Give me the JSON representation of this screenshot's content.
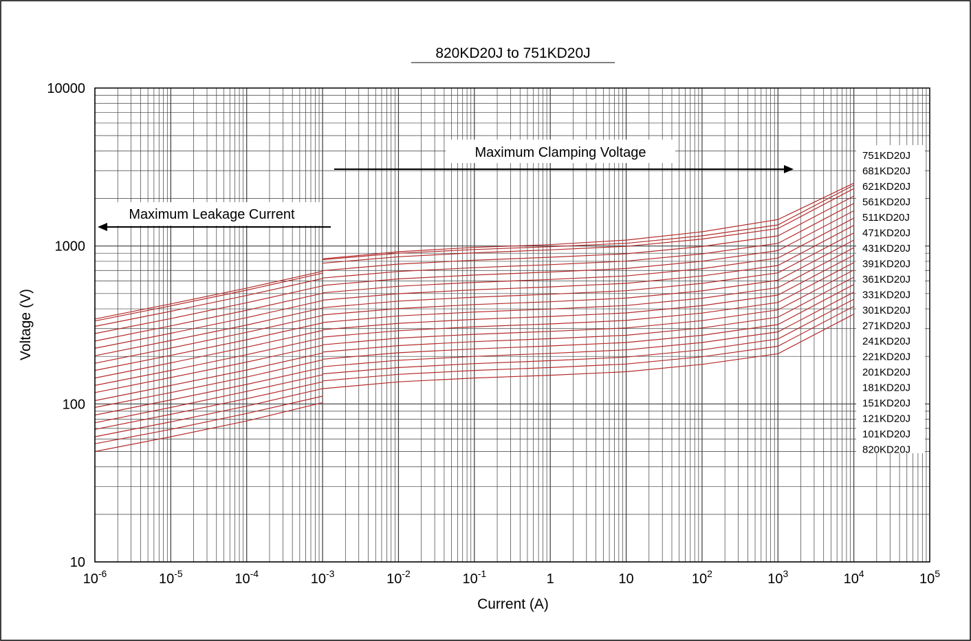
{
  "chart_data": {
    "type": "line",
    "title": "820KD20J to 751KD20J",
    "xlabel": "Current (A)",
    "ylabel": "Voltage (V)",
    "x_scale": "log",
    "y_scale": "log",
    "xlim": [
      1e-06,
      100000
    ],
    "ylim": [
      10,
      10000
    ],
    "grid": true,
    "x_ticks": [
      {
        "base": "10",
        "exp": "-6"
      },
      {
        "base": "10",
        "exp": "-5"
      },
      {
        "base": "10",
        "exp": "-4"
      },
      {
        "base": "10",
        "exp": "-3"
      },
      {
        "base": "10",
        "exp": "-2"
      },
      {
        "base": "10",
        "exp": "-1"
      },
      {
        "base": "1",
        "exp": ""
      },
      {
        "base": "10",
        "exp": ""
      },
      {
        "base": "10",
        "exp": "2"
      },
      {
        "base": "10",
        "exp": "3"
      },
      {
        "base": "10",
        "exp": "4"
      },
      {
        "base": "10",
        "exp": "5"
      }
    ],
    "y_ticks": [
      "10",
      "100",
      "1000",
      "10000"
    ],
    "annotations": {
      "leakage": "Maximum Leakage Current",
      "clamping": "Maximum Clamping Voltage"
    },
    "series_color": "#b52a2a",
    "leakage_x": [
      1e-06,
      1e-05,
      0.0001,
      0.001
    ],
    "clamping_x": [
      0.001,
      0.01,
      0.1,
      1,
      10,
      100,
      1000,
      10000
    ],
    "series": [
      {
        "name": "820KD20J",
        "leakage": [
          50,
          62,
          78,
          102
        ],
        "clamping": [
          125,
          138,
          146,
          152,
          160,
          178,
          208,
          370
        ]
      },
      {
        "name": "101KD20J",
        "leakage": [
          56,
          69,
          87,
          112
        ],
        "clamping": [
          140,
          154,
          163,
          170,
          179,
          199,
          232,
          415
        ]
      },
      {
        "name": "121KD20J",
        "leakage": [
          62,
          77,
          97,
          125
        ],
        "clamping": [
          155,
          170,
          180,
          188,
          198,
          220,
          258,
          460
        ]
      },
      {
        "name": "151KD20J",
        "leakage": [
          69,
          86,
          108,
          138
        ],
        "clamping": [
          172,
          189,
          200,
          209,
          220,
          245,
          286,
          510
        ]
      },
      {
        "name": "181KD20J",
        "leakage": [
          76,
          95,
          120,
          153
        ],
        "clamping": [
          192,
          211,
          223,
          233,
          245,
          272,
          318,
          570
        ]
      },
      {
        "name": "201KD20J",
        "leakage": [
          85,
          106,
          133,
          170
        ],
        "clamping": [
          213,
          234,
          248,
          259,
          272,
          303,
          354,
          635
        ]
      },
      {
        "name": "221KD20J",
        "leakage": [
          95,
          118,
          148,
          190
        ],
        "clamping": [
          237,
          261,
          276,
          288,
          303,
          337,
          394,
          705
        ]
      },
      {
        "name": "241KD20J",
        "leakage": [
          105,
          131,
          164,
          210
        ],
        "clamping": [
          265,
          291,
          308,
          321,
          338,
          376,
          439,
          785
        ]
      },
      {
        "name": "271KD20J",
        "leakage": [
          118,
          147,
          184,
          235
        ],
        "clamping": [
          295,
          324,
          343,
          358,
          377,
          419,
          489,
          875
        ]
      },
      {
        "name": "301KD20J",
        "leakage": [
          131,
          163,
          205,
          262
        ],
        "clamping": [
          328,
          361,
          382,
          399,
          420,
          467,
          545,
          975
        ]
      },
      {
        "name": "331KD20J",
        "leakage": [
          146,
          182,
          229,
          292
        ],
        "clamping": [
          366,
          402,
          426,
          444,
          468,
          520,
          607,
          1090
        ]
      },
      {
        "name": "361KD20J",
        "leakage": [
          163,
          203,
          255,
          326
        ],
        "clamping": [
          407,
          448,
          474,
          495,
          521,
          580,
          676,
          1210
        ]
      },
      {
        "name": "391KD20J",
        "leakage": [
          181,
          226,
          284,
          363
        ],
        "clamping": [
          454,
          499,
          528,
          551,
          580,
          646,
          753,
          1350
        ]
      },
      {
        "name": "431KD20J",
        "leakage": [
          202,
          252,
          316,
          405
        ],
        "clamping": [
          505,
          556,
          588,
          614,
          646,
          719,
          839,
          1500
        ]
      },
      {
        "name": "471KD20J",
        "leakage": [
          225,
          280,
          352,
          451
        ],
        "clamping": [
          563,
          619,
          655,
          684,
          720,
          801,
          935,
          1670
        ]
      },
      {
        "name": "511KD20J",
        "leakage": [
          250,
          312,
          392,
          502
        ],
        "clamping": [
          627,
          690,
          729,
          762,
          802,
          892,
          1040,
          1860
        ]
      },
      {
        "name": "561KD20J",
        "leakage": [
          279,
          347,
          437,
          559
        ],
        "clamping": [
          698,
          768,
          812,
          849,
          893,
          993,
          1160,
          2070
        ]
      },
      {
        "name": "621KD20J",
        "leakage": [
          310,
          386,
          486,
          622
        ],
        "clamping": [
          778,
          855,
          905,
          945,
          995,
          1106,
          1290,
          2310
        ]
      },
      {
        "name": "681KD20J",
        "leakage": [
          345,
          430,
          541,
          692
        ],
        "clamping": [
          820,
          900,
          950,
          990,
          1040,
          1160,
          1360,
          2430
        ]
      },
      {
        "name": "751KD20J",
        "leakage": [
          335,
          418,
          525,
          673
        ],
        "clamping": [
          830,
          920,
          980,
          1020,
          1090,
          1230,
          1470,
          2500
        ]
      }
    ]
  }
}
